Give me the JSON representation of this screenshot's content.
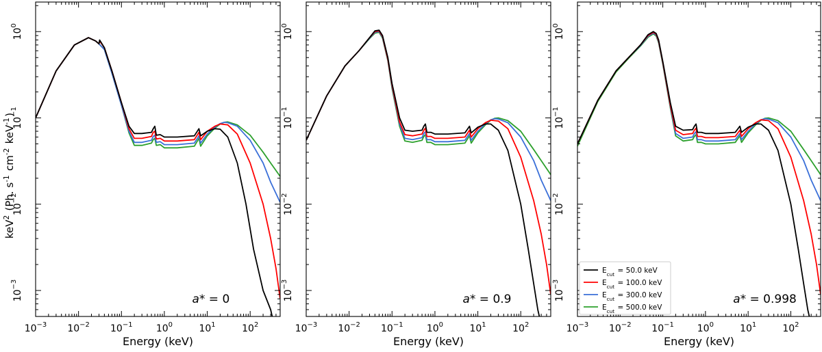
{
  "figure": {
    "ylabel": "keV$^2$ (Ph. s$^{-1}$ cm$^{-2}$ keV$^{-1}$)",
    "xlabel": "Energy (keV)"
  },
  "legend": {
    "placement": "lower-left of third panel",
    "entries": [
      {
        "label": "E$_{cut}$ = 50.0 keV",
        "color": "#000000"
      },
      {
        "label": "E$_{cut}$ = 100.0 keV",
        "color": "#ff0000"
      },
      {
        "label": "E$_{cut}$ = 300.0 keV",
        "color": "#3a6fd8"
      },
      {
        "label": "E$_{cut}$ = 500.0 keV",
        "color": "#2ca02c"
      }
    ]
  },
  "chart_data": [
    {
      "type": "line",
      "annotation": "$a*$ = 0",
      "xlabel": "Energy (keV)",
      "ylabel": "keV$^2$ (Ph. s$^{-1}$ cm$^{-2}$ keV$^{-1}$)",
      "xscale": "log",
      "yscale": "log",
      "xlim": [
        0.001,
        500
      ],
      "ylim": [
        0.0005,
        2.2
      ],
      "x_ticks": [
        "10^-3",
        "10^-2",
        "10^-1",
        "10^0",
        "10^1",
        "10^2"
      ],
      "y_ticks": [
        "10^-3",
        "10^-2",
        "10^-1",
        "10^0"
      ],
      "series": [
        {
          "name": "E$_{cut}$ = 50.0 keV",
          "color": "#000000",
          "x": [
            0.001,
            0.003,
            0.008,
            0.017,
            0.025,
            0.03,
            0.031,
            0.04,
            0.06,
            0.1,
            0.15,
            0.2,
            0.3,
            0.5,
            0.55,
            0.6,
            0.65,
            0.8,
            1,
            2,
            5,
            6.4,
            7,
            10,
            15,
            20,
            30,
            50,
            80,
            120,
            200,
            300,
            360
          ],
          "y": [
            0.1,
            0.35,
            0.7,
            0.85,
            0.78,
            0.72,
            0.8,
            0.65,
            0.35,
            0.15,
            0.08,
            0.066,
            0.066,
            0.068,
            0.075,
            0.08,
            0.063,
            0.064,
            0.06,
            0.06,
            0.062,
            0.075,
            0.062,
            0.07,
            0.075,
            0.074,
            0.06,
            0.03,
            0.01,
            0.003,
            0.001,
            0.0006,
            0.0004
          ]
        },
        {
          "name": "E$_{cut}$ = 100.0 keV",
          "color": "#ff0000",
          "x": [
            0.001,
            0.003,
            0.008,
            0.017,
            0.025,
            0.03,
            0.031,
            0.04,
            0.06,
            0.1,
            0.15,
            0.2,
            0.3,
            0.5,
            0.55,
            0.6,
            0.65,
            0.8,
            1,
            2,
            5,
            6.4,
            7,
            10,
            15,
            20,
            30,
            50,
            100,
            200,
            300,
            400,
            500
          ],
          "y": [
            0.1,
            0.35,
            0.7,
            0.85,
            0.78,
            0.72,
            0.78,
            0.65,
            0.35,
            0.15,
            0.075,
            0.058,
            0.058,
            0.061,
            0.068,
            0.07,
            0.057,
            0.058,
            0.054,
            0.054,
            0.056,
            0.068,
            0.056,
            0.07,
            0.08,
            0.085,
            0.083,
            0.065,
            0.03,
            0.01,
            0.004,
            0.0018,
            0.0008
          ]
        },
        {
          "name": "E$_{cut}$ = 300.0 keV",
          "color": "#3a6fd8",
          "x": [
            0.001,
            0.003,
            0.008,
            0.017,
            0.025,
            0.03,
            0.04,
            0.06,
            0.1,
            0.15,
            0.2,
            0.3,
            0.5,
            0.55,
            0.6,
            0.65,
            0.8,
            1,
            2,
            5,
            6.4,
            7,
            10,
            15,
            20,
            25,
            30,
            50,
            100,
            200,
            300,
            500
          ],
          "y": [
            0.1,
            0.35,
            0.7,
            0.85,
            0.78,
            0.72,
            0.62,
            0.33,
            0.14,
            0.07,
            0.052,
            0.052,
            0.055,
            0.061,
            0.063,
            0.052,
            0.053,
            0.049,
            0.049,
            0.051,
            0.062,
            0.051,
            0.065,
            0.078,
            0.086,
            0.089,
            0.088,
            0.08,
            0.055,
            0.03,
            0.018,
            0.0105
          ]
        },
        {
          "name": "E$_{cut}$ = 500.0 keV",
          "color": "#2ca02c",
          "x": [
            0.001,
            0.003,
            0.008,
            0.017,
            0.025,
            0.03,
            0.04,
            0.06,
            0.1,
            0.15,
            0.2,
            0.3,
            0.5,
            0.55,
            0.6,
            0.65,
            0.8,
            1,
            2,
            5,
            6.4,
            7,
            10,
            15,
            20,
            25,
            30,
            50,
            100,
            200,
            300,
            500
          ],
          "y": [
            0.1,
            0.35,
            0.7,
            0.85,
            0.78,
            0.72,
            0.62,
            0.33,
            0.14,
            0.067,
            0.048,
            0.048,
            0.051,
            0.056,
            0.058,
            0.048,
            0.049,
            0.045,
            0.045,
            0.047,
            0.058,
            0.047,
            0.062,
            0.076,
            0.085,
            0.089,
            0.09,
            0.083,
            0.063,
            0.04,
            0.03,
            0.021
          ]
        }
      ]
    },
    {
      "type": "line",
      "annotation": "$a*$ = 0.9",
      "xlabel": "Energy (keV)",
      "xscale": "log",
      "yscale": "log",
      "xlim": [
        0.001,
        500
      ],
      "ylim": [
        0.0005,
        2.2
      ],
      "x_ticks": [
        "10^-3",
        "10^-2",
        "10^-1",
        "10^0",
        "10^1",
        "10^2"
      ],
      "y_ticks": [
        "10^-3",
        "10^-2",
        "10^-1",
        "10^0"
      ],
      "series": [
        {
          "name": "E$_{cut}$ = 50.0 keV",
          "color": "#000000",
          "x": [
            0.001,
            0.003,
            0.008,
            0.017,
            0.03,
            0.04,
            0.05,
            0.06,
            0.08,
            0.1,
            0.15,
            0.2,
            0.3,
            0.5,
            0.55,
            0.6,
            0.65,
            0.8,
            1,
            2,
            5,
            6.4,
            7,
            10,
            15,
            20,
            30,
            50,
            100,
            150,
            200,
            250,
            300
          ],
          "y": [
            0.055,
            0.18,
            0.4,
            0.6,
            0.85,
            1.02,
            1.04,
            0.9,
            0.5,
            0.25,
            0.1,
            0.072,
            0.07,
            0.072,
            0.08,
            0.085,
            0.068,
            0.068,
            0.065,
            0.065,
            0.067,
            0.08,
            0.067,
            0.078,
            0.085,
            0.085,
            0.072,
            0.042,
            0.01,
            0.003,
            0.0012,
            0.0006,
            0.0004
          ]
        },
        {
          "name": "E$_{cut}$ = 100.0 keV",
          "color": "#ff0000",
          "x": [
            0.001,
            0.003,
            0.008,
            0.017,
            0.03,
            0.04,
            0.05,
            0.06,
            0.08,
            0.1,
            0.15,
            0.2,
            0.3,
            0.5,
            0.55,
            0.6,
            0.65,
            0.8,
            1,
            2,
            5,
            6.4,
            7,
            10,
            15,
            20,
            30,
            50,
            100,
            200,
            300,
            400,
            500
          ],
          "y": [
            0.055,
            0.18,
            0.4,
            0.6,
            0.85,
            1.0,
            1.02,
            0.88,
            0.48,
            0.24,
            0.09,
            0.064,
            0.062,
            0.065,
            0.072,
            0.076,
            0.061,
            0.061,
            0.058,
            0.058,
            0.06,
            0.072,
            0.06,
            0.075,
            0.088,
            0.094,
            0.092,
            0.075,
            0.035,
            0.011,
            0.0045,
            0.002,
            0.0009
          ]
        },
        {
          "name": "E$_{cut}$ = 300.0 keV",
          "color": "#3a6fd8",
          "x": [
            0.001,
            0.003,
            0.008,
            0.017,
            0.03,
            0.04,
            0.05,
            0.06,
            0.08,
            0.1,
            0.15,
            0.2,
            0.3,
            0.5,
            0.55,
            0.6,
            0.65,
            0.8,
            1,
            2,
            5,
            6.4,
            7,
            10,
            15,
            20,
            25,
            30,
            50,
            100,
            200,
            300,
            500
          ],
          "y": [
            0.055,
            0.18,
            0.4,
            0.6,
            0.84,
            0.98,
            1.0,
            0.86,
            0.47,
            0.23,
            0.085,
            0.058,
            0.056,
            0.059,
            0.066,
            0.069,
            0.056,
            0.056,
            0.053,
            0.053,
            0.055,
            0.066,
            0.055,
            0.07,
            0.085,
            0.095,
            0.098,
            0.097,
            0.088,
            0.06,
            0.032,
            0.019,
            0.011
          ]
        },
        {
          "name": "E$_{cut}$ = 500.0 keV",
          "color": "#2ca02c",
          "x": [
            0.001,
            0.003,
            0.008,
            0.017,
            0.03,
            0.04,
            0.05,
            0.06,
            0.08,
            0.1,
            0.15,
            0.2,
            0.3,
            0.5,
            0.55,
            0.6,
            0.65,
            0.8,
            1,
            2,
            5,
            6.4,
            7,
            10,
            15,
            20,
            25,
            30,
            50,
            100,
            200,
            300,
            500
          ],
          "y": [
            0.055,
            0.18,
            0.4,
            0.6,
            0.83,
            0.96,
            0.98,
            0.84,
            0.46,
            0.22,
            0.08,
            0.054,
            0.052,
            0.055,
            0.061,
            0.064,
            0.052,
            0.052,
            0.049,
            0.049,
            0.051,
            0.062,
            0.051,
            0.067,
            0.083,
            0.094,
            0.099,
            0.1,
            0.093,
            0.07,
            0.043,
            0.032,
            0.022
          ]
        }
      ]
    },
    {
      "type": "line",
      "annotation": "$a*$ = 0.998",
      "xlabel": "Energy (keV)",
      "xscale": "log",
      "yscale": "log",
      "xlim": [
        0.001,
        500
      ],
      "ylim": [
        0.0005,
        2.2
      ],
      "x_ticks": [
        "10^-3",
        "10^-2",
        "10^-1",
        "10^0",
        "10^1",
        "10^2"
      ],
      "y_ticks": [
        "10^-3",
        "10^-2",
        "10^-1",
        "10^0"
      ],
      "series": [
        {
          "name": "E$_{cut}$ = 50.0 keV",
          "color": "#000000",
          "x": [
            0.001,
            0.003,
            0.008,
            0.017,
            0.03,
            0.045,
            0.06,
            0.07,
            0.08,
            0.1,
            0.15,
            0.2,
            0.3,
            0.5,
            0.55,
            0.6,
            0.65,
            0.8,
            1,
            2,
            5,
            6.4,
            7,
            10,
            15,
            20,
            30,
            50,
            100,
            150,
            200,
            250,
            300
          ],
          "y": [
            0.05,
            0.16,
            0.35,
            0.52,
            0.7,
            0.92,
            1.0,
            0.95,
            0.8,
            0.45,
            0.15,
            0.08,
            0.072,
            0.073,
            0.08,
            0.085,
            0.068,
            0.068,
            0.066,
            0.066,
            0.068,
            0.08,
            0.068,
            0.078,
            0.085,
            0.085,
            0.072,
            0.042,
            0.01,
            0.003,
            0.0012,
            0.0006,
            0.0004
          ]
        },
        {
          "name": "E$_{cut}$ = 100.0 keV",
          "color": "#ff0000",
          "x": [
            0.001,
            0.003,
            0.008,
            0.017,
            0.03,
            0.045,
            0.06,
            0.07,
            0.08,
            0.1,
            0.15,
            0.2,
            0.3,
            0.5,
            0.55,
            0.6,
            0.65,
            0.8,
            1,
            2,
            5,
            6.4,
            7,
            10,
            15,
            20,
            30,
            50,
            100,
            200,
            300,
            400,
            500
          ],
          "y": [
            0.05,
            0.16,
            0.35,
            0.52,
            0.7,
            0.9,
            0.98,
            0.93,
            0.78,
            0.44,
            0.14,
            0.072,
            0.064,
            0.066,
            0.072,
            0.076,
            0.061,
            0.061,
            0.059,
            0.059,
            0.061,
            0.072,
            0.061,
            0.075,
            0.088,
            0.095,
            0.093,
            0.075,
            0.035,
            0.011,
            0.0045,
            0.002,
            0.0009
          ]
        },
        {
          "name": "E$_{cut}$ = 300.0 keV",
          "color": "#3a6fd8",
          "x": [
            0.001,
            0.003,
            0.008,
            0.017,
            0.03,
            0.045,
            0.06,
            0.07,
            0.08,
            0.1,
            0.15,
            0.2,
            0.3,
            0.5,
            0.55,
            0.6,
            0.65,
            0.8,
            1,
            2,
            5,
            6.4,
            7,
            10,
            15,
            20,
            25,
            30,
            50,
            100,
            200,
            300,
            500
          ],
          "y": [
            0.05,
            0.16,
            0.35,
            0.52,
            0.69,
            0.88,
            0.96,
            0.91,
            0.76,
            0.43,
            0.135,
            0.066,
            0.058,
            0.06,
            0.066,
            0.069,
            0.056,
            0.056,
            0.054,
            0.054,
            0.056,
            0.066,
            0.056,
            0.07,
            0.085,
            0.095,
            0.098,
            0.097,
            0.088,
            0.06,
            0.032,
            0.019,
            0.011
          ]
        },
        {
          "name": "E$_{cut}$ = 500.0 keV",
          "color": "#2ca02c",
          "x": [
            0.001,
            0.003,
            0.008,
            0.017,
            0.03,
            0.045,
            0.06,
            0.07,
            0.08,
            0.1,
            0.15,
            0.2,
            0.3,
            0.5,
            0.55,
            0.6,
            0.65,
            0.8,
            1,
            2,
            5,
            6.4,
            7,
            10,
            15,
            20,
            25,
            30,
            50,
            100,
            200,
            300,
            500
          ],
          "y": [
            0.047,
            0.155,
            0.34,
            0.51,
            0.68,
            0.86,
            0.94,
            0.89,
            0.74,
            0.42,
            0.13,
            0.062,
            0.054,
            0.056,
            0.061,
            0.064,
            0.052,
            0.052,
            0.05,
            0.05,
            0.052,
            0.062,
            0.052,
            0.067,
            0.083,
            0.094,
            0.099,
            0.1,
            0.093,
            0.07,
            0.043,
            0.032,
            0.022
          ]
        }
      ]
    }
  ]
}
